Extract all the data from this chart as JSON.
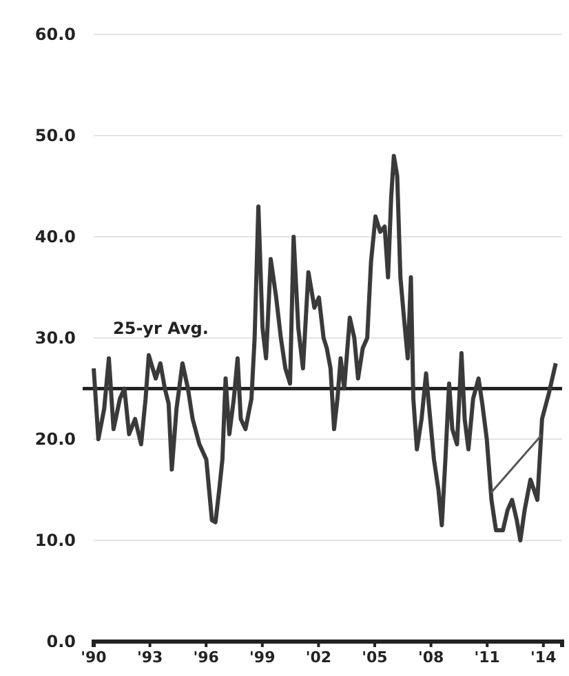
{
  "chart_data": {
    "type": "line",
    "x": [
      1990.0,
      1990.25,
      1990.56,
      1990.81,
      1991.06,
      1991.4,
      1991.64,
      1991.89,
      1992.21,
      1992.53,
      1992.77,
      1992.94,
      1993.31,
      1993.56,
      1993.8,
      1994.0,
      1994.17,
      1994.42,
      1994.74,
      1995.03,
      1995.28,
      1995.64,
      1996.01,
      1996.31,
      1996.5,
      1996.7,
      1996.87,
      1997.04,
      1997.24,
      1997.48,
      1997.68,
      1997.85,
      1998.1,
      1998.42,
      1998.59,
      1998.79,
      1999.01,
      1999.2,
      1999.45,
      1999.74,
      1999.99,
      2000.23,
      2000.48,
      2000.67,
      2000.92,
      2001.17,
      2001.46,
      2001.78,
      2002.02,
      2002.27,
      2002.44,
      2002.64,
      2002.83,
      2003.01,
      2003.18,
      2003.37,
      2003.67,
      2003.91,
      2004.11,
      2004.36,
      2004.6,
      2004.8,
      2005.04,
      2005.29,
      2005.53,
      2005.71,
      2005.88,
      2006.02,
      2006.2,
      2006.37,
      2006.56,
      2006.76,
      2006.93,
      2007.06,
      2007.25,
      2007.5,
      2007.74,
      2007.91,
      2008.16,
      2008.4,
      2008.58,
      2008.77,
      2008.97,
      2009.14,
      2009.39,
      2009.63,
      2009.8,
      2010.0,
      2010.25,
      2010.54,
      2010.74,
      2010.98,
      2011.23,
      2011.47,
      2011.84,
      2012.09,
      2012.33,
      2012.58,
      2012.77,
      2013.0,
      2013.31,
      2013.68,
      2013.93,
      2014.29,
      2014.66
    ],
    "series": [
      {
        "color": "#3a3a3a",
        "values": [
          27,
          20,
          23,
          28,
          21,
          24,
          25,
          20.5,
          22,
          19.5,
          24,
          28.3,
          26,
          27.5,
          25,
          23.5,
          17,
          23,
          27.5,
          25,
          22,
          19.5,
          18,
          12,
          11.8,
          15,
          18,
          26,
          20.5,
          24,
          28,
          22,
          21,
          24,
          30,
          43,
          31,
          28,
          37.8,
          34,
          30,
          27,
          25.5,
          40,
          31,
          27,
          36.5,
          33,
          34,
          30,
          29,
          27,
          21,
          24,
          28,
          25,
          32,
          30,
          26,
          29,
          30,
          37.5,
          42,
          40.5,
          41,
          36,
          44,
          48,
          46,
          36,
          32,
          28,
          36,
          24,
          19,
          22,
          26.5,
          23,
          18,
          15,
          11.5,
          18,
          25.5,
          21,
          19.5,
          28.5,
          22,
          19,
          24,
          26,
          23.5,
          20,
          14,
          11,
          11,
          13,
          14,
          12,
          10,
          13,
          16,
          14,
          22,
          24.5,
          27.5
        ]
      },
      {
        "type": "line",
        "color": "#555555",
        "x": [
          2011.2,
          2013.9
        ],
        "values": [
          14.7,
          20.4
        ]
      }
    ],
    "xlim": [
      1990,
      2015
    ],
    "xticks": [
      {
        "value": 1990,
        "label": "'90"
      },
      {
        "value": 1993,
        "label": "'93"
      },
      {
        "value": 1996,
        "label": "'96"
      },
      {
        "value": 1999,
        "label": "'99"
      },
      {
        "value": 2002,
        "label": "'02"
      },
      {
        "value": 2005,
        "label": "'05"
      },
      {
        "value": 2008,
        "label": "'08"
      },
      {
        "value": 2011,
        "label": "'11"
      },
      {
        "value": 2014,
        "label": "'14"
      }
    ],
    "ylim": [
      0,
      60
    ],
    "yticks": [
      {
        "value": 0,
        "label": "0.0"
      },
      {
        "value": 10,
        "label": "10.0"
      },
      {
        "value": 20,
        "label": "20.0"
      },
      {
        "value": 30,
        "label": "30.0"
      },
      {
        "value": 40,
        "label": "40.0"
      },
      {
        "value": 50,
        "label": "50.0"
      },
      {
        "value": 60,
        "label": "60.0"
      }
    ],
    "grid": "y",
    "ref_lines": [
      {
        "axis": "y",
        "value": 25,
        "label": "25-yr Avg.",
        "color": "#222222"
      }
    ]
  }
}
